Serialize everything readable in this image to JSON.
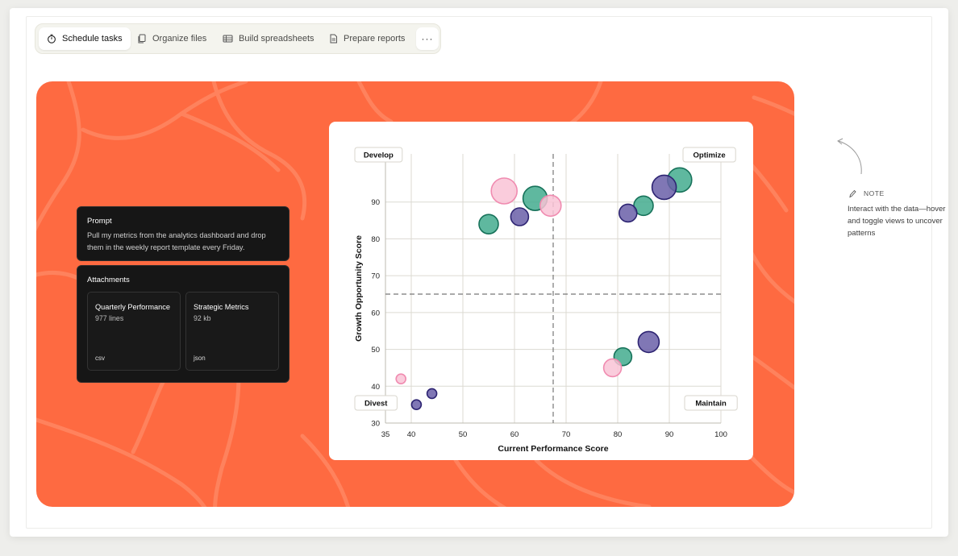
{
  "tabs": [
    {
      "label": "Schedule tasks",
      "icon": "timer-icon",
      "active": true
    },
    {
      "label": "Organize files",
      "icon": "files-icon",
      "active": false
    },
    {
      "label": "Build spreadsheets",
      "icon": "table-icon",
      "active": false
    },
    {
      "label": "Prepare reports",
      "icon": "document-icon",
      "active": false
    }
  ],
  "more_label": "···",
  "prompt": {
    "title": "Prompt",
    "text": "Pull my metrics from the analytics dashboard and drop them in the weekly report template every Friday."
  },
  "attachments": {
    "title": "Attachments",
    "items": [
      {
        "name": "Quarterly Performance",
        "meta": "977 lines",
        "type": "csv"
      },
      {
        "name": "Strategic Metrics",
        "meta": "92 kb",
        "type": "json"
      }
    ]
  },
  "note": {
    "label": "NOTE",
    "text": "Interact with the data—hover and toggle views to uncover patterns"
  },
  "colors": {
    "accent_orange": "#fe6a41",
    "bubble_pink": "#f7b8cf",
    "bubble_teal": "#3aa488",
    "bubble_purple": "#5a4d9c"
  },
  "chart_data": {
    "type": "scatter",
    "xlabel": "Current Performance Score",
    "ylabel": "Growth Opportunity Score",
    "xlim": [
      35,
      100
    ],
    "ylim": [
      30,
      100
    ],
    "xticks": [
      35,
      40,
      50,
      60,
      70,
      80,
      90,
      100
    ],
    "yticks": [
      30,
      40,
      50,
      60,
      70,
      80,
      90
    ],
    "grid": true,
    "divider_x": 67.5,
    "divider_y": 65,
    "quadrants": [
      "Develop",
      "Optimize",
      "Divest",
      "Maintain"
    ],
    "points": [
      {
        "x": 58,
        "y": 93,
        "size": 16,
        "group": "pink"
      },
      {
        "x": 64,
        "y": 91,
        "size": 15,
        "group": "teal"
      },
      {
        "x": 67,
        "y": 89,
        "size": 13,
        "group": "pink"
      },
      {
        "x": 61,
        "y": 86,
        "size": 11,
        "group": "purple"
      },
      {
        "x": 55,
        "y": 84,
        "size": 12,
        "group": "teal"
      },
      {
        "x": 92,
        "y": 96,
        "size": 15,
        "group": "teal"
      },
      {
        "x": 89,
        "y": 94,
        "size": 15,
        "group": "purple"
      },
      {
        "x": 85,
        "y": 89,
        "size": 12,
        "group": "teal"
      },
      {
        "x": 82,
        "y": 87,
        "size": 11,
        "group": "purple"
      },
      {
        "x": 86,
        "y": 52,
        "size": 13,
        "group": "purple"
      },
      {
        "x": 81,
        "y": 48,
        "size": 11,
        "group": "teal"
      },
      {
        "x": 79,
        "y": 45,
        "size": 11,
        "group": "pink"
      },
      {
        "x": 38,
        "y": 42,
        "size": 6,
        "group": "pink"
      },
      {
        "x": 44,
        "y": 38,
        "size": 6,
        "group": "purple"
      },
      {
        "x": 41,
        "y": 35,
        "size": 6,
        "group": "purple"
      }
    ]
  }
}
